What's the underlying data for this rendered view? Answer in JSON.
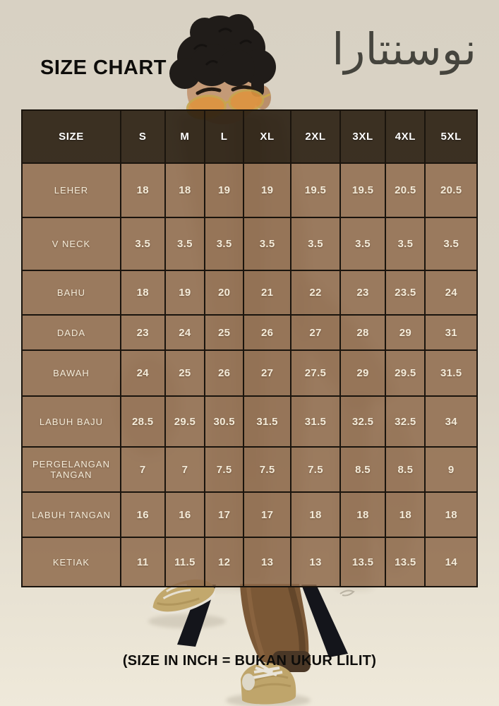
{
  "page": {
    "title": "SIZE CHART",
    "brand_jawi": "نوسنتارا",
    "footnote": "(SIZE IN INCH = BUKAN UKUR LILIT)"
  },
  "chart_data": {
    "type": "table",
    "title": "SIZE CHART",
    "columns": [
      "SIZE",
      "S",
      "M",
      "L",
      "XL",
      "2XL",
      "3XL",
      "4XL",
      "5XL"
    ],
    "rows": [
      {
        "label": "LEHER",
        "values": [
          "18",
          "18",
          "19",
          "19",
          "19.5",
          "19.5",
          "20.5",
          "20.5"
        ]
      },
      {
        "label": "V NECK",
        "values": [
          "3.5",
          "3.5",
          "3.5",
          "3.5",
          "3.5",
          "3.5",
          "3.5",
          "3.5"
        ]
      },
      {
        "label": "BAHU",
        "values": [
          "18",
          "19",
          "20",
          "21",
          "22",
          "23",
          "23.5",
          "24"
        ]
      },
      {
        "label": "DADA",
        "values": [
          "23",
          "24",
          "25",
          "26",
          "27",
          "28",
          "29",
          "31"
        ]
      },
      {
        "label": "BAWAH",
        "values": [
          "24",
          "25",
          "26",
          "27",
          "27.5",
          "29",
          "29.5",
          "31.5"
        ]
      },
      {
        "label": "LABUH BAJU",
        "values": [
          "28.5",
          "29.5",
          "30.5",
          "31.5",
          "31.5",
          "32.5",
          "32.5",
          "34"
        ]
      },
      {
        "label": "PERGELANGAN TANGAN",
        "values": [
          "7",
          "7",
          "7.5",
          "7.5",
          "7.5",
          "8.5",
          "8.5",
          "9"
        ]
      },
      {
        "label": "LABUH TANGAN",
        "values": [
          "16",
          "16",
          "17",
          "17",
          "18",
          "18",
          "18",
          "18"
        ]
      },
      {
        "label": "KETIAK",
        "values": [
          "11",
          "11.5",
          "12",
          "13",
          "13",
          "13.5",
          "13.5",
          "14"
        ]
      }
    ],
    "unit_note": "(SIZE IN INCH = BUKAN UKUR LILIT)"
  },
  "colors": {
    "background": "#dbd4c6",
    "table_header_bg": "#463b2d",
    "table_cell_bg": "#9a7a5e",
    "table_border": "#1a140d",
    "cell_text": "#f4ebd9",
    "header_text": "#ffffff",
    "title_text": "#0e0d0b",
    "jawi_text": "#45443d",
    "shoe_gold": "#c2a86d",
    "pants_brown": "#7b5836",
    "stool_black": "#14151b"
  }
}
